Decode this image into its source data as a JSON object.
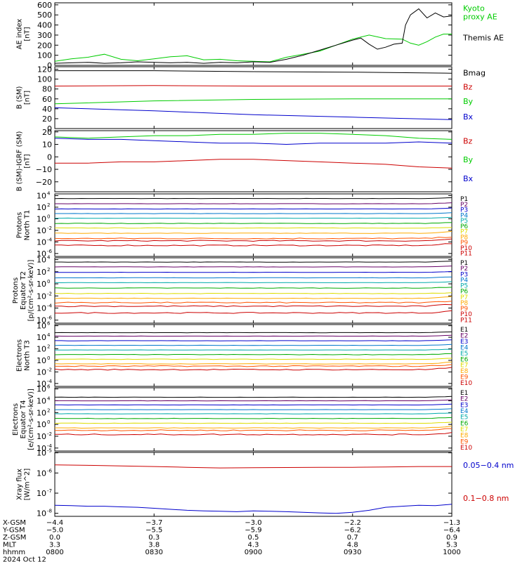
{
  "chart_data": [
    {
      "type": "line",
      "ylabel": [
        "AE index",
        "[nT]"
      ],
      "ylim": [
        0,
        620
      ],
      "yticks": [
        {
          "v": 0,
          "t": "0"
        },
        {
          "v": 100,
          "t": "100"
        },
        {
          "v": 200,
          "t": "200"
        },
        {
          "v": 300,
          "t": "300"
        },
        {
          "v": 400,
          "t": "400"
        },
        {
          "v": 500,
          "t": "500"
        },
        {
          "v": 600,
          "t": "600"
        }
      ],
      "labels": [
        {
          "lines": [
            "Kyoto",
            "proxy AE"
          ],
          "color": "#00cc00",
          "at": 0.87
        },
        {
          "lines": [
            "Themis AE"
          ],
          "color": "#000000",
          "at": 0.4
        }
      ],
      "series": [
        {
          "color": "#00cc00",
          "width": 1,
          "x": [
            0,
            10,
            20,
            30,
            40,
            50,
            60,
            70,
            80,
            90,
            100,
            110,
            120,
            130,
            140,
            150,
            160,
            170,
            180,
            190,
            200,
            210,
            215,
            220,
            225,
            230,
            235,
            240
          ],
          "y": [
            40,
            65,
            80,
            110,
            60,
            45,
            65,
            85,
            95,
            55,
            60,
            45,
            40,
            35,
            80,
            110,
            140,
            200,
            260,
            300,
            265,
            260,
            220,
            200,
            235,
            280,
            310,
            310
          ]
        },
        {
          "color": "#000000",
          "width": 1,
          "x": [
            0,
            10,
            20,
            30,
            40,
            50,
            60,
            70,
            80,
            90,
            100,
            110,
            120,
            130,
            140,
            150,
            160,
            170,
            180,
            185,
            190,
            195,
            200,
            205,
            210,
            212,
            215,
            220,
            225,
            230,
            235,
            240
          ],
          "y": [
            20,
            25,
            30,
            20,
            25,
            35,
            30,
            25,
            30,
            20,
            30,
            25,
            35,
            30,
            60,
            100,
            150,
            200,
            250,
            270,
            210,
            160,
            180,
            210,
            220,
            400,
            500,
            560,
            470,
            520,
            480,
            490
          ]
        }
      ]
    },
    {
      "type": "line",
      "ylabel": [
        "B (SM)",
        "[nT]"
      ],
      "ylim": [
        0,
        125
      ],
      "yticks": [
        {
          "v": 0,
          "t": "0"
        },
        {
          "v": 20,
          "t": "20"
        },
        {
          "v": 40,
          "t": "40"
        },
        {
          "v": 60,
          "t": "60"
        },
        {
          "v": 80,
          "t": "80"
        },
        {
          "v": 100,
          "t": "100"
        },
        {
          "v": 120,
          "t": "120"
        }
      ],
      "labels": [
        {
          "lines": [
            "Bx"
          ],
          "color": "#0000cc",
          "at": 0.15
        },
        {
          "lines": [
            "By"
          ],
          "color": "#00cc00",
          "at": 0.4
        },
        {
          "lines": [
            "Bz"
          ],
          "color": "#cc0000",
          "at": 0.63
        },
        {
          "lines": [
            "Bmag"
          ],
          "color": "#000000",
          "at": 0.86
        }
      ],
      "series": [
        {
          "color": "#000000",
          "width": 1,
          "x": [
            0,
            60,
            120,
            180,
            240
          ],
          "y": [
            117,
            117,
            115,
            114,
            112
          ]
        },
        {
          "color": "#cc0000",
          "width": 1,
          "x": [
            0,
            60,
            120,
            180,
            240
          ],
          "y": [
            86,
            87,
            86,
            86,
            86
          ]
        },
        {
          "color": "#00cc00",
          "width": 1,
          "x": [
            0,
            60,
            120,
            180,
            240
          ],
          "y": [
            50,
            56,
            59,
            60,
            60
          ]
        },
        {
          "color": "#0000cc",
          "width": 1,
          "x": [
            0,
            60,
            120,
            180,
            240
          ],
          "y": [
            42,
            36,
            28,
            23,
            18
          ]
        }
      ]
    },
    {
      "type": "line",
      "ylabel": [
        "B (SM)-IGRF (SM)",
        "[nT]"
      ],
      "ylim": [
        -28,
        21
      ],
      "yticks": [
        {
          "v": -20,
          "t": "−20"
        },
        {
          "v": -10,
          "t": "−10"
        },
        {
          "v": 0,
          "t": "0"
        },
        {
          "v": 10,
          "t": "10"
        },
        {
          "v": 20,
          "t": "20"
        }
      ],
      "labels": [
        {
          "lines": [
            "Bx"
          ],
          "color": "#0000cc",
          "at": 0.17
        },
        {
          "lines": [
            "By"
          ],
          "color": "#00cc00",
          "at": 0.48
        },
        {
          "lines": [
            "Bz"
          ],
          "color": "#cc0000",
          "at": 0.79
        }
      ],
      "series": [
        {
          "color": "#00cc00",
          "width": 1,
          "x": [
            0,
            20,
            40,
            60,
            80,
            100,
            120,
            140,
            160,
            180,
            200,
            220,
            240
          ],
          "y": [
            16,
            15,
            16,
            17,
            17,
            18,
            18,
            19,
            19,
            18,
            17,
            15,
            14
          ]
        },
        {
          "color": "#0000cc",
          "width": 1,
          "x": [
            0,
            20,
            40,
            60,
            80,
            100,
            120,
            140,
            160,
            180,
            200,
            220,
            240
          ],
          "y": [
            15,
            14,
            14,
            13,
            12,
            11,
            11,
            10,
            11,
            11,
            11,
            12,
            11
          ]
        },
        {
          "color": "#cc0000",
          "width": 1,
          "x": [
            0,
            20,
            40,
            60,
            80,
            100,
            120,
            140,
            160,
            180,
            200,
            220,
            240
          ],
          "y": [
            -5,
            -5,
            -4,
            -4,
            -3,
            -2,
            -2,
            -3,
            -4,
            -5,
            -6,
            -8,
            -9
          ]
        }
      ]
    },
    {
      "type": "line",
      "log": true,
      "ylabel": [
        "Protons",
        "North T1"
      ],
      "ylim": [
        -6.5,
        4.3
      ],
      "yticks": [
        {
          "v": 4,
          "t": "10",
          "e": "4"
        },
        {
          "v": 2,
          "t": "10",
          "e": "2"
        },
        {
          "v": 0,
          "t": "10",
          "e": "0"
        },
        {
          "v": -2,
          "t": "10",
          "e": "-2"
        },
        {
          "v": -4,
          "t": "10",
          "e": "-4"
        },
        {
          "v": -6,
          "t": "10",
          "e": "-6"
        }
      ],
      "channels": [
        {
          "name": "P1",
          "color": "#000000",
          "level": 3.5
        },
        {
          "name": "P2",
          "color": "#660066",
          "level": 2.6
        },
        {
          "name": "P3",
          "color": "#0000cc",
          "level": 1.7
        },
        {
          "name": "P4",
          "color": "#0077cc",
          "level": 0.9
        },
        {
          "name": "P5",
          "color": "#00aaaa",
          "level": 0.1
        },
        {
          "name": "P6",
          "color": "#00aa00",
          "level": -0.8
        },
        {
          "name": "P7",
          "color": "#dddd00",
          "level": -1.6
        },
        {
          "name": "P8",
          "color": "#ffaa00",
          "level": -2.5
        },
        {
          "name": "P9",
          "color": "#ff5500",
          "level": -3.4
        },
        {
          "name": "P10",
          "color": "#cc0000",
          "level": -3.8
        },
        {
          "name": "P11",
          "color": "#cc0000",
          "level": -4.6
        }
      ]
    },
    {
      "type": "line",
      "log": true,
      "ylabel": [
        "Protons",
        "Equator T2",
        "[p/(cm²-s-sr-keV)]"
      ],
      "ylim": [
        -6.5,
        4.3
      ],
      "yticks": [
        {
          "v": 4,
          "t": "10",
          "e": "4"
        },
        {
          "v": 2,
          "t": "10",
          "e": "2"
        },
        {
          "v": 0,
          "t": "10",
          "e": "0"
        },
        {
          "v": -2,
          "t": "10",
          "e": "-2"
        },
        {
          "v": -4,
          "t": "10",
          "e": "-4"
        },
        {
          "v": -6,
          "t": "10",
          "e": "-6"
        }
      ],
      "channels": [
        {
          "name": "P1",
          "color": "#000000",
          "level": 3.6
        },
        {
          "name": "P2",
          "color": "#660066",
          "level": 2.8
        },
        {
          "name": "P3",
          "color": "#0000cc",
          "level": 1.9
        },
        {
          "name": "P4",
          "color": "#0077cc",
          "level": 1.0
        },
        {
          "name": "P5",
          "color": "#00aaaa",
          "level": 0.2
        },
        {
          "name": "P6",
          "color": "#00aa00",
          "level": -0.7
        },
        {
          "name": "P7",
          "color": "#dddd00",
          "level": -1.6
        },
        {
          "name": "P8",
          "color": "#ffaa00",
          "level": -2.4
        },
        {
          "name": "P9",
          "color": "#ff5500",
          "level": -3.1
        },
        {
          "name": "P10",
          "color": "#cc0000",
          "level": -3.7
        },
        {
          "name": "P11",
          "color": "#cc0000",
          "level": -4.8
        }
      ]
    },
    {
      "type": "line",
      "log": true,
      "ylabel": [
        "Electrons",
        "North T3"
      ],
      "ylim": [
        -4.5,
        6.2
      ],
      "yticks": [
        {
          "v": 6,
          "t": "10",
          "e": "6"
        },
        {
          "v": 4,
          "t": "10",
          "e": "4"
        },
        {
          "v": 2,
          "t": "10",
          "e": "2"
        },
        {
          "v": 0,
          "t": "10",
          "e": "0"
        },
        {
          "v": -2,
          "t": "10",
          "e": "-2"
        },
        {
          "v": -4,
          "t": "10",
          "e": "-4"
        }
      ],
      "channels": [
        {
          "name": "E1",
          "color": "#000000",
          "level": 4.8
        },
        {
          "name": "E2",
          "color": "#660066",
          "level": 4.2
        },
        {
          "name": "E3",
          "color": "#0000cc",
          "level": 3.4
        },
        {
          "name": "E4",
          "color": "#0077cc",
          "level": 2.6
        },
        {
          "name": "E5",
          "color": "#00aaaa",
          "level": 1.8
        },
        {
          "name": "E6",
          "color": "#00aa00",
          "level": 1.0
        },
        {
          "name": "E7",
          "color": "#dddd00",
          "level": 0.2
        },
        {
          "name": "E8",
          "color": "#ffaa00",
          "level": -0.6
        },
        {
          "name": "E9",
          "color": "#ff5500",
          "level": -1.0
        },
        {
          "name": "E10",
          "color": "#cc0000",
          "level": -1.6
        }
      ]
    },
    {
      "type": "line",
      "log": true,
      "ylabel": [
        "Electrons",
        "Equator T4",
        "[e/(cm²-s-sr-keV)]"
      ],
      "ylim": [
        -4.5,
        6.2
      ],
      "yticks": [
        {
          "v": 6,
          "t": "10",
          "e": "6"
        },
        {
          "v": 4,
          "t": "10",
          "e": "4"
        },
        {
          "v": 2,
          "t": "10",
          "e": "2"
        },
        {
          "v": 0,
          "t": "10",
          "e": "0"
        },
        {
          "v": -2,
          "t": "10",
          "e": "-2"
        },
        {
          "v": -4,
          "t": "10",
          "e": "-4"
        }
      ],
      "channels": [
        {
          "name": "E1",
          "color": "#000000",
          "level": 4.6
        },
        {
          "name": "E2",
          "color": "#660066",
          "level": 4.0
        },
        {
          "name": "E3",
          "color": "#0000cc",
          "level": 3.3
        },
        {
          "name": "E4",
          "color": "#0077cc",
          "level": 2.5
        },
        {
          "name": "E5",
          "color": "#00aaaa",
          "level": 1.8
        },
        {
          "name": "E6",
          "color": "#00aa00",
          "level": 1.0
        },
        {
          "name": "E7",
          "color": "#dddd00",
          "level": 0.2
        },
        {
          "name": "E8",
          "color": "#ffaa00",
          "level": -0.6
        },
        {
          "name": "E9",
          "color": "#ff5500",
          "level": -1.0
        },
        {
          "name": "E10",
          "color": "#cc0000",
          "level": -1.7
        }
      ]
    },
    {
      "type": "line",
      "log": true,
      "ylabel": [
        "Xray flux",
        "[W/m^2]"
      ],
      "ylim": [
        -8.15,
        -4.98
      ],
      "yticks": [
        {
          "v": -5,
          "t": "10",
          "e": "-5"
        },
        {
          "v": -6,
          "t": "10",
          "e": "-6"
        },
        {
          "v": -7,
          "t": "10",
          "e": "-7"
        },
        {
          "v": -8,
          "t": "10",
          "e": "-8"
        }
      ],
      "labels": [
        {
          "lines": [
            "0.1−0.8 nm"
          ],
          "color": "#cc0000",
          "at": 0.24
        },
        {
          "lines": [
            "0.05−0.4 nm"
          ],
          "color": "#0000cc",
          "at": 0.76
        }
      ],
      "series": [
        {
          "color": "#cc0000",
          "width": 1,
          "x": [
            0,
            20,
            40,
            60,
            80,
            100,
            120,
            140,
            160,
            180,
            200,
            220,
            240
          ],
          "y": [
            -5.6,
            -5.62,
            -5.65,
            -5.68,
            -5.72,
            -5.75,
            -5.74,
            -5.73,
            -5.72,
            -5.72,
            -5.7,
            -5.68,
            -5.68
          ]
        },
        {
          "color": "#0000cc",
          "width": 1,
          "x": [
            0,
            10,
            20,
            30,
            40,
            50,
            60,
            70,
            80,
            90,
            100,
            110,
            120,
            130,
            140,
            150,
            160,
            170,
            180,
            190,
            200,
            210,
            220,
            230,
            240
          ],
          "y": [
            -7.6,
            -7.62,
            -7.65,
            -7.65,
            -7.68,
            -7.7,
            -7.75,
            -7.8,
            -7.85,
            -7.88,
            -7.9,
            -7.92,
            -7.88,
            -7.9,
            -7.92,
            -7.95,
            -7.98,
            -8.0,
            -7.95,
            -7.85,
            -7.7,
            -7.65,
            -7.6,
            -7.62,
            -7.55
          ]
        }
      ]
    }
  ],
  "x_axis": {
    "row_labels": [
      "X-GSM",
      "Y-GSM",
      "Z-GSM",
      "MLT",
      "hhmm",
      "2024 Oct 12"
    ],
    "ticks": [
      {
        "values": [
          "−4.4",
          "−5.0",
          "0.0",
          "3.3",
          "0800"
        ]
      },
      {
        "values": [
          "−3.7",
          "−5.5",
          "0.3",
          "3.8",
          "0830"
        ]
      },
      {
        "values": [
          "−3.0",
          "−5.9",
          "0.5",
          "4.3",
          "0900"
        ]
      },
      {
        "values": [
          "−2.2",
          "−6.2",
          "0.7",
          "4.8",
          "0930"
        ]
      },
      {
        "values": [
          "−1.3",
          "−6.4",
          "0.9",
          "5.3",
          "1000"
        ]
      }
    ]
  }
}
